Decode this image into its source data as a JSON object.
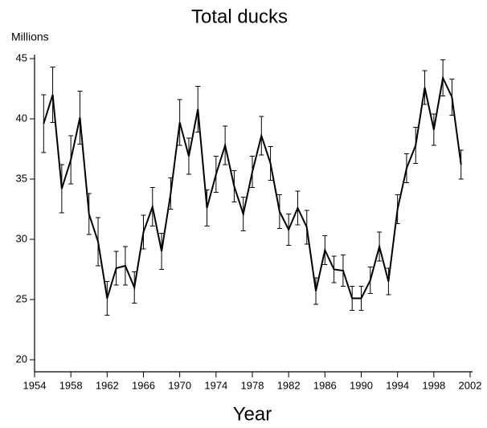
{
  "chart_data": {
    "type": "line",
    "title": "Total ducks",
    "ylabel": "Millions",
    "xlabel": "Year",
    "x": [
      1955,
      1956,
      1957,
      1958,
      1959,
      1960,
      1961,
      1962,
      1963,
      1964,
      1965,
      1966,
      1967,
      1968,
      1969,
      1970,
      1971,
      1972,
      1973,
      1974,
      1975,
      1976,
      1977,
      1978,
      1979,
      1980,
      1981,
      1982,
      1983,
      1984,
      1985,
      1986,
      1987,
      1988,
      1989,
      1990,
      1991,
      1992,
      1993,
      1994,
      1995,
      1996,
      1997,
      1998,
      1999,
      2000,
      2001
    ],
    "series": [
      {
        "color": "#000000",
        "values": [
          39.6,
          42.0,
          34.2,
          36.6,
          40.1,
          32.1,
          29.8,
          25.1,
          27.6,
          27.8,
          26.0,
          30.6,
          32.7,
          29.0,
          33.8,
          39.7,
          36.9,
          40.8,
          32.6,
          35.4,
          37.8,
          34.4,
          32.1,
          35.6,
          38.6,
          36.3,
          32.3,
          30.8,
          32.6,
          31.0,
          25.7,
          29.1,
          27.5,
          27.4,
          25.1,
          25.1,
          26.6,
          29.4,
          26.5,
          32.5,
          35.9,
          37.8,
          42.6,
          39.1,
          43.4,
          41.8,
          36.2
        ],
        "errors": [
          2.4,
          2.3,
          2.0,
          2.0,
          2.2,
          1.7,
          2.0,
          1.4,
          1.4,
          1.6,
          1.3,
          1.4,
          1.6,
          1.5,
          1.3,
          1.9,
          1.5,
          1.9,
          1.5,
          1.5,
          1.6,
          1.3,
          1.4,
          1.3,
          1.6,
          1.4,
          1.4,
          1.3,
          1.4,
          1.4,
          1.1,
          1.2,
          1.1,
          1.3,
          1.0,
          1.0,
          1.1,
          1.2,
          1.1,
          1.2,
          1.2,
          1.5,
          1.4,
          1.3,
          1.5,
          1.5,
          1.2
        ]
      }
    ],
    "xlim": [
      1954,
      2002
    ],
    "xticks": [
      1954,
      1958,
      1962,
      1966,
      1970,
      1974,
      1978,
      1982,
      1986,
      1990,
      1994,
      1998,
      2002
    ],
    "ylim": [
      19,
      45
    ],
    "yticks": [
      20,
      25,
      30,
      35,
      40,
      45
    ]
  }
}
